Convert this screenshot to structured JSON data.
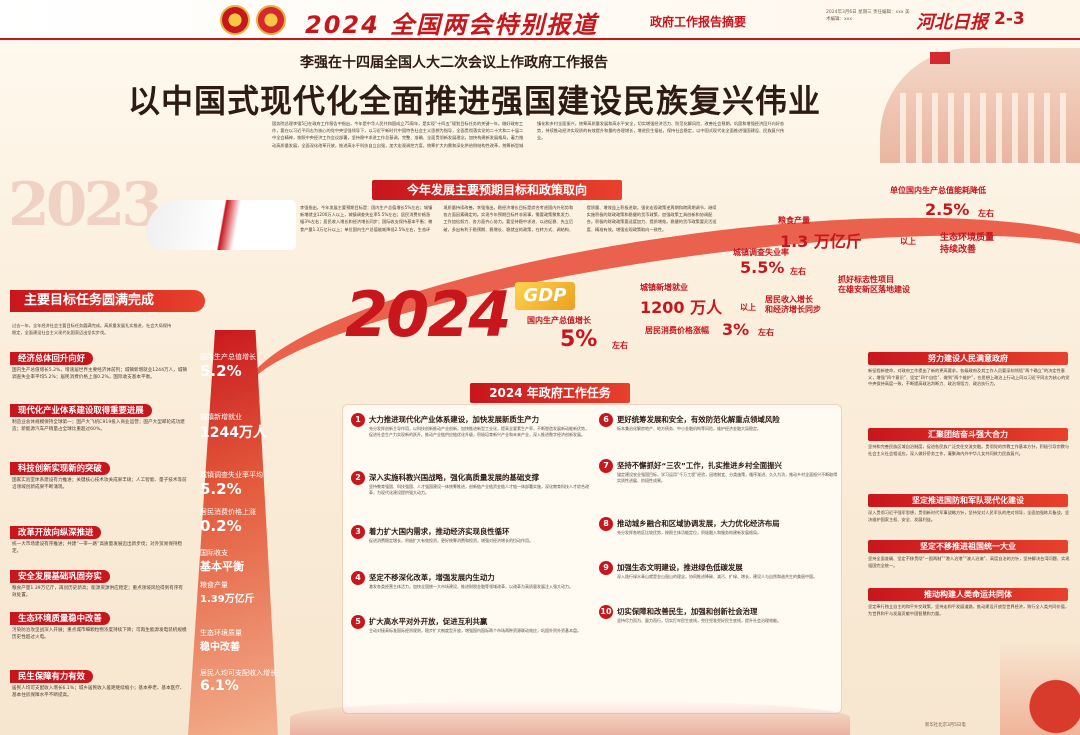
{
  "header": {
    "title": "2024 全国两会特别报道",
    "section": "政府工作报告摘要",
    "meta": "2024年3月6日 星期三 责任编辑：xxx 美术编辑：xxx",
    "paper": "河北日报",
    "page": "2-3"
  },
  "headline": {
    "sub": "李强在十四届全国人大二次会议上作政府工作报告",
    "main": "以中国式现代化全面推进强国建设民族复兴伟业"
  },
  "intro": "国务院总理李强5日在政府工作报告中指出，今年是中华人民共和国成立75周年，是实现“十四五”规划目标任务的关键一年。做好政府工作，要在以习近平同志为核心的党中央坚强领导下，以习近平新时代中国特色社会主义思想为指导，全面贯彻落实党的二十大和二十届二中全会精神，按照中央经济工作会议部署，坚持稳中求进工作总基调，完整、准确、全面贯彻新发展理念，加快构建新发展格局，着力推动高质量发展，全面深化改革开放，推进高水平科技自立自强，加大宏观调控力度，统筹扩大内需和深化供给侧结构性改革，统筹新型城镇化和乡村全面振兴，统筹高质量发展和高水平安全，切实增强经济活力、防范化解风险、改善社会预期，巩固和增强经济回升向好态势，持续推动经济实现质的有效提升和量的合理增长，增进民生福祉，保持社会稳定，以中国式现代化全面推进强国建设、民族复兴伟业。",
  "expect": {
    "title": "今年发展主要预期目标和政策取向",
    "text": "李强指出，今年发展主要预期目标是：国内生产总值增长5%左右；城镇新增就业1200万人以上，城镇调查失业率5.5%左右；居民消费价格涨幅3%左右；居民收入增长和经济增长同步；国际收支保持基本平衡；粮食产量1.3万亿斤以上；单位国内生产总值能耗降低2.5%左右，生态环境质量持续改善。李强指出，稳经济增长目标是综合考虑国内外形势和各方面因素确定的。实现今年预期目标并非易事，需要政策聚焦发力、工作加倍努力、各方面齐心协力。要坚持稳中求进、以进促稳、先立后破，多出有利于稳预期、稳增长、稳就业的政策，在转方式、调结构、提质量、增效益上积极进取。强化宏观政策逆周期和跨周期调节，继续实施积极的财政政策和稳健的货币政策，加强政策工具创新和协调配合。积极的财政政策要适度加力、提质增效。稳健的货币政策要灵活适度、精准有效。增强宏观政策取向一致性。"
  },
  "year_prev": "2023",
  "year_now": "2024",
  "gdp_badge": "GDP",
  "targets": {
    "gdp": {
      "label": "国内生产总值增长",
      "value": "5%",
      "unit": "左右"
    },
    "cpi": {
      "label": "居民消费价格涨幅",
      "value": "3%",
      "unit": "左右"
    },
    "jobs": {
      "label": "城镇新增就业",
      "value": "1200 万人",
      "unit": "以上"
    },
    "unemp": {
      "label": "城镇调查失业率",
      "value": "5.5%",
      "unit": "左右"
    },
    "grain": {
      "label": "粮食产量",
      "value": "1.3 万亿斤",
      "unit": "以上"
    },
    "energy": {
      "label": "单位国内生产总值能耗降低",
      "value": "2.5%",
      "unit": "左右"
    },
    "income": {
      "label": "居民收入增长\n和经济增长同步"
    },
    "xiongan": {
      "label": "抓好标志性项目\n在雄安新区落地建设"
    },
    "eco": {
      "label": "生态环境质量\n持续改善"
    }
  },
  "left": {
    "banner": "主要目标任务圆满完成",
    "intro": "过去一年，全年经济社会主要目标任务圆满完成。高质量发展扎实推进，社会大局保持稳定，全面建设社会主义现代化国家迈出坚实步伐。",
    "sections": [
      {
        "title": "经济总体回升向好",
        "body": "国内生产总值增长5.2%，增速居世界主要经济体前列；城镇新增就业1244万人，城镇调查失业率平均5.2%；居民消费价格上涨0.2%，国际收支基本平衡。"
      },
      {
        "title": "现代化产业体系建设取得重要进展",
        "body": "制造业总体规模保持全球第一；国产大飞机C919投入商业运营；国产大型邮轮成功建造；新能源汽车产销量占全球比重超过60%。"
      },
      {
        "title": "科技创新实现新的突破",
        "body": "国家实验室体系建设有力推进；关键核心技术攻关成果丰硕；人工智能、量子技术等前沿领域创新成果不断涌现。"
      },
      {
        "title": "改革开放向纵深推进",
        "body": "统一大市场建设有序推进；共建“一带一路”高质量发展迈出新步伐；对外贸易保持稳定。"
      },
      {
        "title": "安全发展基础巩固夯实",
        "body": "粮食产量1.39万亿斤，再创历史新高；能源资源供应稳定；重点领域风险得到有序有效处置。"
      },
      {
        "title": "生态环境质量稳中改善",
        "body": "污染防治攻坚战深入开展；重点城市细颗粒物浓度持续下降；可再生能源发电装机规模历史性超过火电。"
      },
      {
        "title": "民生保障有力有效",
        "body": "居民人均可支配收入增长6.1%；城乡居民收入差距继续缩小；基本养老、基本医疗、基本住房保障水平不断提高。"
      }
    ],
    "road": [
      {
        "label": "国内生产总值增长",
        "value": "5.2%"
      },
      {
        "label": "城镇新增就业",
        "value": "1244万人"
      },
      {
        "label": "城镇调查失业率平均",
        "value": "5.2%"
      },
      {
        "label": "居民消费价格上涨",
        "value": "0.2%"
      },
      {
        "label": "国际收支",
        "value": "基本平衡"
      },
      {
        "label": "粮食产量",
        "value": "1.39万亿斤"
      },
      {
        "label": "生态环境质量",
        "value": "稳中改善"
      },
      {
        "label": "居民人均可支配收入增长",
        "value": "6.1%"
      }
    ]
  },
  "tasks": {
    "title": "2024 年政府工作任务",
    "items": [
      {
        "num": "1",
        "title": "大力推进现代化产业体系建设，加快发展新质生产力",
        "desc": "充分发挥创新主导作用，以科技创新推动产业创新，加快推进新型工业化，提高全要素生产率，不断塑造发展新动能新优势，促进社会生产力实现新的跃升。推动产业链供应链优化升级，积极培育新兴产业和未来产业，深入推进数字经济创新发展。"
      },
      {
        "num": "2",
        "title": "深入实施科教兴国战略，强化高质量发展的基础支撑",
        "desc": "坚持教育强国、科技强国、人才强国建设一体统筹推进，创新链产业链资金链人才链一体部署实施，深化教育科技人才综合改革，为现代化建设提供强大动力。"
      },
      {
        "num": "3",
        "title": "着力扩大国内需求，推动经济实现良性循环",
        "desc": "促进消费稳定增长，积极扩大有效投资，更好统筹消费和投资，增强对经济增长的拉动作用。"
      },
      {
        "num": "4",
        "title": "坚定不移深化改革，增强发展内生动力",
        "desc": "激发各类经营主体活力，加快全国统一大市场建设，推进财税金融等领域改革，以改革为高质量发展注入强大动力。"
      },
      {
        "num": "5",
        "title": "扩大高水平对外开放，促进互利共赢",
        "desc": "主动对接高标准国际经贸规则，稳步扩大制度型开放，增强国内国际两个市场两种资源联动效应，巩固外贸外资基本盘。"
      },
      {
        "num": "6",
        "title": "更好统筹发展和安全，有效防范化解重点领域风险",
        "desc": "标本兼治化解房地产、地方债务、中小金融机构等风险，维护经济金融大局稳定。"
      },
      {
        "num": "7",
        "title": "坚持不懈抓好“三农”工作，扎实推进乡村全面振兴",
        "desc": "锚定建设农业强国目标，学习运用“千万工程”经验，因地制宜、分类施策，循序渐进、久久为功，推动乡村全面振兴不断取得实质性进展、阶段性成果。"
      },
      {
        "num": "8",
        "title": "推动城乡融合和区域协调发展，大力优化经济布局",
        "desc": "充分发挥各地区比较优势，按照主体功能定位，积极融入和服务构建新发展格局。"
      },
      {
        "num": "9",
        "title": "加强生态文明建设，推进绿色低碳发展",
        "desc": "深入践行绿水青山就是金山银山的理念，协同推进降碳、减污、扩绿、增长，建设人与自然和谐共生的美丽中国。"
      },
      {
        "num": "10",
        "title": "切实保障和改善民生，加强和创新社会治理",
        "desc": "坚持尽力而为、量力而行，切实打牢民生底线，兜住兜准兜好民生底线，提升社会治理效能。"
      }
    ]
  },
  "right": [
    {
      "title": "努力建设人民满意政府",
      "body": "新征程新使命，对政府工作提出了新的更高要求。各级政府及其工作人员要深刻领悟“两个确立”的决定性意义，增强“四个意识”、坚定“四个自信”、做到“两个维护”，在思想上政治上行动上同以习近平同志为核心的党中央保持高度一致，不断提高政治判断力、政治领悟力、政治执行力。"
    },
    {
      "title": "汇聚团结奋斗强大合力",
      "body": "坚持和完善民族区域自治制度，促进各民族广泛交往交流交融。贯彻党的宗教工作基本方针，积极引导宗教与社会主义社会相适应。深入做好侨务工作，凝聚海内外中华儿女共同致力民族复兴。"
    },
    {
      "title": "坚定推进国防和军队现代化建设",
      "body": "深入贯彻习近平强军思想，贯彻新时代军事战略方针，坚持党对人民军队的绝对领导，全面加强练兵备战，坚决维护国家主权、安全、发展利益。"
    },
    {
      "title": "坚定不移推进祖国统一大业",
      "body": "坚持全面准确、坚定不移贯彻“一国两制”“港人治港”“澳人治澳”、高度自治的方针，坚持解决台湾问题、实现祖国完全统一。"
    },
    {
      "title": "推动构建人类命运共同体",
      "body": "坚定奉行独立自主的和平外交政策，坚持走和平发展道路，推动建设开放型世界经济，践行全人类共同价值，为世界和平与发展贡献中国智慧和力量。"
    }
  ],
  "footnote": "新华社北京3月5日电"
}
